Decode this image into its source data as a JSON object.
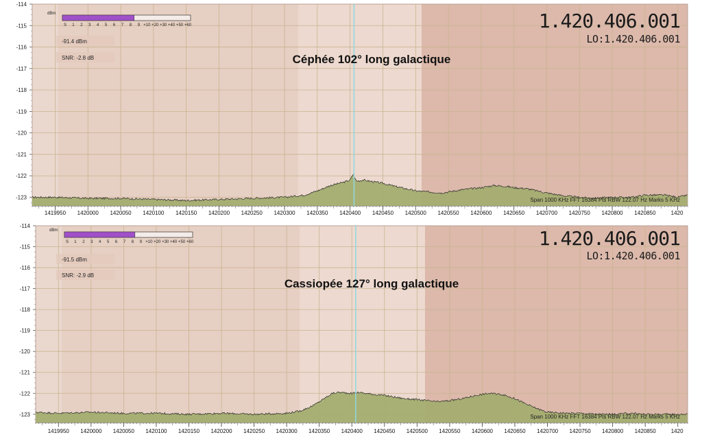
{
  "smeter": {
    "unit": "dBm",
    "scale": [
      "S",
      "1",
      "2",
      "3",
      "4",
      "5",
      "6",
      "7",
      "8",
      "9",
      "+10",
      "+20",
      "+30",
      "+40",
      "+50",
      "+60"
    ],
    "accent": "#a050c8"
  },
  "colors": {
    "spectrum_fill": "#a3ad6e",
    "spectrum_line": "#2a2a2a",
    "marker_line": "#8fd8e0",
    "band_light": "#e9d2c6",
    "band_dark": "#d9b6a8"
  },
  "chart_data": [
    {
      "type": "area",
      "title": "Céphée 102° long galactique",
      "frequency": "1.420.406.001",
      "lo": "LO:1.420.406.001",
      "level": "-91.4 dBm",
      "snr": "SNR: -2.8 dB",
      "info": "Span 1000 KHz   FFT 16384 Pts   RBW 122.07 Hz   Marks 5 KHz",
      "y_ticks": [
        "-114",
        "-115",
        "-116",
        "-117",
        "-118",
        "-119",
        "-120",
        "-121",
        "-122",
        "-123"
      ],
      "ylim": [
        -123.4,
        -114
      ],
      "smeter_fill": 0.56,
      "x_ticks": [
        "1419950",
        "1420000",
        "1420050",
        "1420100",
        "1420150",
        "1420200",
        "1420250",
        "1420300",
        "1420350",
        "1420400",
        "1420450",
        "1420500",
        "1420550",
        "1420600",
        "1420650",
        "1420700",
        "1420750",
        "1420800",
        "1420850",
        "1420"
      ],
      "xlim": [
        1419915,
        1420915
      ],
      "marker_x": 1420406,
      "x": [
        1419915,
        1419950,
        1420000,
        1420050,
        1420100,
        1420150,
        1420200,
        1420250,
        1420300,
        1420330,
        1420350,
        1420370,
        1420390,
        1420400,
        1420405,
        1420407,
        1420410,
        1420420,
        1420430,
        1420450,
        1420470,
        1420500,
        1420520,
        1420540,
        1420550,
        1420570,
        1420600,
        1420620,
        1420640,
        1420650,
        1420670,
        1420700,
        1420730,
        1420750,
        1420770,
        1420800,
        1420830,
        1420850,
        1420880,
        1420900,
        1420915
      ],
      "y": [
        -123.0,
        -123.0,
        -123.05,
        -123.05,
        -123.1,
        -123.15,
        -123.1,
        -123.05,
        -123.0,
        -122.9,
        -122.7,
        -122.45,
        -122.3,
        -122.2,
        -121.9,
        -122.1,
        -122.25,
        -122.2,
        -122.25,
        -122.35,
        -122.5,
        -122.7,
        -122.75,
        -122.8,
        -122.75,
        -122.65,
        -122.55,
        -122.45,
        -122.5,
        -122.55,
        -122.6,
        -122.8,
        -122.95,
        -123.0,
        -123.05,
        -123.0,
        -123.0,
        -122.9,
        -122.9,
        -123.0,
        -122.9
      ]
    },
    {
      "type": "area",
      "title": "Cassiopée 127° long galactique",
      "frequency": "1.420.406.001",
      "lo": "LO:1.420.406.001",
      "level": "-91.5 dBm",
      "snr": "SNR: -2.9 dB",
      "info": "Span 1000 KHz   FFT 16384 Pts   RBW 122.07 Hz   Marks 5 KHz",
      "y_ticks": [
        "-114",
        "-115",
        "-116",
        "-117",
        "-118",
        "-119",
        "-120",
        "-121",
        "-122",
        "-123"
      ],
      "ylim": [
        -123.4,
        -114
      ],
      "smeter_fill": 0.55,
      "x_ticks": [
        "1419950",
        "1420000",
        "1420050",
        "1420100",
        "1420150",
        "1420200",
        "1420250",
        "1420300",
        "1420350",
        "1420400",
        "1420450",
        "1420500",
        "1420550",
        "1420600",
        "1420650",
        "1420700",
        "1420750",
        "1420800",
        "1420850",
        "1420"
      ],
      "xlim": [
        1419915,
        1420915
      ],
      "marker_x": 1420406,
      "x": [
        1419915,
        1419950,
        1420000,
        1420050,
        1420100,
        1420150,
        1420200,
        1420250,
        1420300,
        1420320,
        1420340,
        1420360,
        1420370,
        1420380,
        1420400,
        1420410,
        1420420,
        1420450,
        1420480,
        1420500,
        1420530,
        1420550,
        1420570,
        1420590,
        1420610,
        1420630,
        1420650,
        1420670,
        1420690,
        1420700,
        1420730,
        1420750,
        1420780,
        1420800,
        1420830,
        1420850,
        1420880,
        1420915
      ],
      "y": [
        -122.9,
        -122.95,
        -122.9,
        -122.95,
        -122.95,
        -123.0,
        -122.95,
        -123.0,
        -122.95,
        -122.85,
        -122.6,
        -122.2,
        -122.0,
        -121.95,
        -122.0,
        -121.95,
        -122.0,
        -122.1,
        -122.25,
        -122.3,
        -122.4,
        -122.35,
        -122.25,
        -122.1,
        -122.0,
        -122.05,
        -122.25,
        -122.55,
        -122.8,
        -122.9,
        -122.95,
        -122.95,
        -123.0,
        -123.0,
        -122.95,
        -123.0,
        -123.0,
        -123.0
      ]
    }
  ]
}
